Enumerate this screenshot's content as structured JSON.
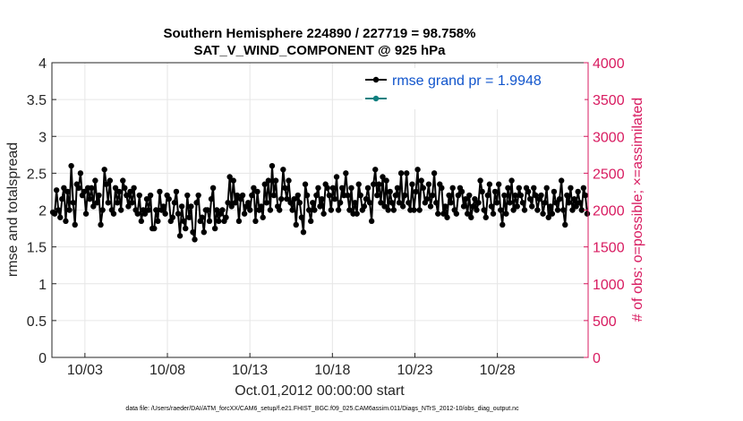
{
  "chart_data": {
    "type": "line",
    "title_line1": "Southern Hemisphere 224890 / 227719 = 98.758%",
    "title_line2": "SAT_V_WIND_COMPONENT @ 925 hPa",
    "xlabel": "Oct.01,2012 00:00:00 start",
    "ylabel_left": "rmse and totalspread",
    "ylabel_right": "# of obs: o=possible; ×=assimilated",
    "footer": "data file: /Users/raeder/DAI/ATM_forcXX/CAM6_setup/f.e21.FHIST_BGC.f09_025.CAM6assim.011/Diags_NTrS_2012-10/obs_diag_output.nc",
    "x_range_days": [
      1,
      33.5
    ],
    "ylim_left": [
      0,
      4
    ],
    "ylim_right": [
      0,
      4000
    ],
    "x_ticks": [
      {
        "day": 3,
        "label": "10/03"
      },
      {
        "day": 8,
        "label": "10/08"
      },
      {
        "day": 13,
        "label": "10/13"
      },
      {
        "day": 18,
        "label": "10/18"
      },
      {
        "day": 23,
        "label": "10/23"
      },
      {
        "day": 28,
        "label": "10/28"
      }
    ],
    "y_ticks_left": [
      {
        "value": 0,
        "label": "0"
      },
      {
        "value": 0.5,
        "label": "0.5"
      },
      {
        "value": 1,
        "label": "1"
      },
      {
        "value": 1.5,
        "label": "1.5"
      },
      {
        "value": 2,
        "label": "2"
      },
      {
        "value": 2.5,
        "label": "2.5"
      },
      {
        "value": 3,
        "label": "3"
      },
      {
        "value": 3.5,
        "label": "3.5"
      },
      {
        "value": 4,
        "label": "4"
      }
    ],
    "y_ticks_right": [
      {
        "value": 0,
        "label": "0"
      },
      {
        "value": 500,
        "label": "500"
      },
      {
        "value": 1000,
        "label": "1000"
      },
      {
        "value": 1500,
        "label": "1500"
      },
      {
        "value": 2000,
        "label": "2000"
      },
      {
        "value": 2500,
        "label": "2500"
      },
      {
        "value": 3000,
        "label": "3000"
      },
      {
        "value": 3500,
        "label": "3500"
      },
      {
        "value": 4000,
        "label": "4000"
      }
    ],
    "series": [
      {
        "name": "rmse grand pr = 1.9948",
        "color": "#000000",
        "axis": "left",
        "values": [
          1.97,
          1.95,
          2.27,
          2.0,
          1.9,
          2.15,
          2.3,
          1.85,
          2.25,
          2.0,
          2.6,
          2.1,
          1.8,
          2.35,
          2.3,
          2.5,
          2.2,
          2.25,
          1.95,
          2.3,
          2.15,
          2.3,
          2.05,
          2.4,
          2.1,
          2.2,
          1.8,
          2.0,
          2.55,
          2.35,
          2.1,
          2.4,
          2.0,
          1.95,
          2.3,
          2.1,
          2.25,
          2.0,
          2.4,
          2.3,
          2.2,
          2.05,
          2.25,
          2.1,
          2.3,
          2.0,
          1.95,
          2.2,
          1.85,
          2.0,
          1.95,
          2.15,
          2.0,
          2.2,
          1.75,
          1.75,
          2.0,
          1.85,
          2.25,
          2.0,
          2.05,
          1.95,
          2.2,
          2.15,
          1.85,
          1.9,
          2.1,
          2.25,
          1.95,
          1.65,
          2.05,
          1.85,
          1.75,
          2.2,
          1.9,
          2.05,
          1.7,
          1.6,
          2.1,
          2.2,
          1.85,
          1.9,
          1.7,
          2.0,
          2.0,
          1.85,
          2.15,
          2.3,
          1.75,
          2.0,
          1.85,
          1.95,
          2.0,
          1.85,
          1.9,
          2.1,
          2.45,
          2.05,
          2.4,
          2.1,
          2.2,
          1.85,
          2.15,
          2.2,
          1.95,
          2.05,
          2.1,
          2.0,
          2.2,
          2.3,
          1.85,
          2.25,
          2.0,
          2.05,
          1.9,
          2.35,
          2.1,
          2.4,
          2.0,
          2.6,
          2.2,
          2.4,
          2.05,
          2.0,
          2.15,
          2.55,
          2.3,
          2.15,
          2.4,
          2.1,
          2.0,
          2.15,
          1.8,
          2.2,
          2.1,
          1.9,
          1.7,
          2.35,
          2.2,
          2.0,
          1.85,
          2.1,
          2.0,
          2.2,
          2.3,
          2.05,
          2.15,
          1.95,
          2.35,
          2.3,
          2.2,
          2.0,
          2.3,
          2.15,
          2.45,
          2.0,
          2.1,
          2.3,
          2.2,
          2.5,
          2.2,
          2.0,
          2.3,
          1.95,
          2.1,
          1.95,
          2.35,
          2.2,
          2.0,
          2.05,
          2.15,
          2.3,
          2.1,
          1.85,
          2.35,
          2.55,
          2.2,
          2.35,
          2.1,
          2.45,
          2.05,
          2.4,
          2.0,
          2.25,
          2.1,
          2.0,
          2.2,
          2.3,
          2.1,
          2.5,
          2.05,
          2.2,
          2.5,
          2.1,
          2.0,
          2.35,
          2.0,
          2.25,
          2.55,
          2.0,
          2.4,
          2.3,
          2.1,
          2.15,
          2.35,
          2.05,
          2.2,
          2.5,
          2.1,
          1.95,
          2.35,
          2.3,
          1.95,
          2.05,
          1.9,
          2.2,
          2.1,
          2.3,
          2.0,
          1.95,
          2.2,
          2.3,
          2.25,
          2.05,
          2.15,
          1.95,
          2.2,
          1.9,
          2.05,
          2.15,
          2.0,
          2.1,
          2.4,
          2.25,
          2.0,
          1.9,
          2.2,
          2.35,
          2.05,
          1.95,
          2.25,
          2.1,
          2.35,
          2.0,
          1.8,
          2.2,
          1.95,
          2.3,
          2.1,
          2.4,
          2.0,
          2.2,
          2.05,
          2.3,
          2.2,
          2.1,
          2.0,
          2.3,
          2.25,
          2.15,
          2.05,
          2.3,
          2.2,
          2.0,
          2.15,
          2.2,
          1.95,
          2.1,
          2.3,
          1.9,
          2.05,
          1.95,
          2.25,
          2.1,
          2.0,
          2.15,
          2.4,
          2.0,
          1.8,
          2.2,
          2.1,
          2.3,
          2.0,
          2.15,
          2.05,
          2.25,
          2.1,
          2.0,
          2.3,
          2.2,
          1.95
        ]
      }
    ]
  }
}
